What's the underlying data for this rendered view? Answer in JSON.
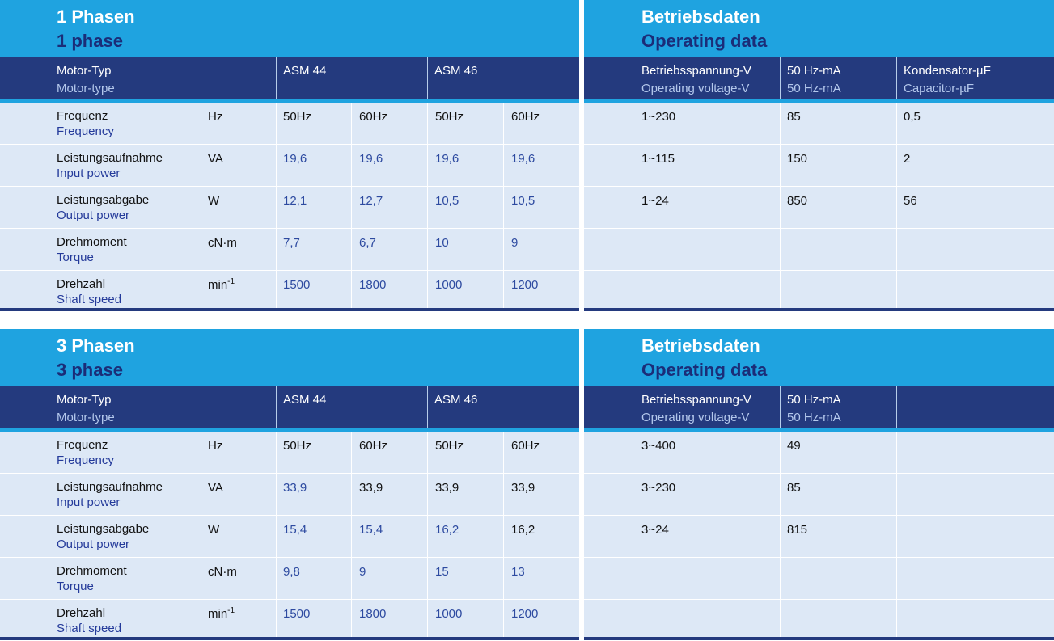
{
  "phase1": {
    "title_de": "1 Phasen",
    "title_en": "1 phase",
    "motor_type_de": "Motor-Typ",
    "motor_type_en": "Motor-type",
    "model_a": "ASM 44",
    "model_b": "ASM 46",
    "rows": [
      {
        "de": "Frequenz",
        "en": "Frequency",
        "unit": "Hz",
        "v": [
          "50Hz",
          "60Hz",
          "50Hz",
          "60Hz"
        ]
      },
      {
        "de": "Leistungsaufnahme",
        "en": "Input power",
        "unit": "VA",
        "v": [
          "19,6",
          "19,6",
          "19,6",
          "19,6"
        ]
      },
      {
        "de": "Leistungsabgabe",
        "en": "Output power",
        "unit": "W",
        "v": [
          "12,1",
          "12,7",
          "10,5",
          "10,5"
        ]
      },
      {
        "de": "Drehmoment",
        "en": "Torque",
        "unit": "cN·m",
        "v": [
          "7,7",
          "6,7",
          "10",
          "9"
        ]
      },
      {
        "de": "Drehzahl",
        "en": "Shaft speed",
        "unit": "min",
        "unit_sup": "-1",
        "v": [
          "1500",
          "1800",
          "1000",
          "1200"
        ]
      }
    ]
  },
  "op1": {
    "title_de": "Betriebsdaten",
    "title_en": "Operating data",
    "headers": [
      {
        "de": "Betriebsspannung-V",
        "en": "Operating voltage-V"
      },
      {
        "de": "50 Hz-mA",
        "en": "50 Hz-mA"
      },
      {
        "de": "Kondensator-µF",
        "en": "Capacitor-µF"
      }
    ],
    "rows": [
      [
        "1~230",
        "85",
        "0,5"
      ],
      [
        "1~115",
        "150",
        "2"
      ],
      [
        "1~24",
        "850",
        "56"
      ]
    ]
  },
  "phase3": {
    "title_de": "3 Phasen",
    "title_en": "3 phase",
    "motor_type_de": "Motor-Typ",
    "motor_type_en": "Motor-type",
    "model_a": "ASM 44",
    "model_b": "ASM 46",
    "rows": [
      {
        "de": "Frequenz",
        "en": "Frequency",
        "unit": "Hz",
        "v": [
          "50Hz",
          "60Hz",
          "50Hz",
          "60Hz"
        ]
      },
      {
        "de": "Leistungsaufnahme",
        "en": "Input power",
        "unit": "VA",
        "v": [
          "33,9",
          "33,9",
          "33,9",
          "33,9"
        ]
      },
      {
        "de": "Leistungsabgabe",
        "en": "Output power",
        "unit": "W",
        "v": [
          "15,4",
          "15,4",
          "16,2",
          "16,2"
        ]
      },
      {
        "de": "Drehmoment",
        "en": "Torque",
        "unit": "cN·m",
        "v": [
          "9,8",
          "9",
          "15",
          "13"
        ]
      },
      {
        "de": "Drehzahl",
        "en": "Shaft speed",
        "unit": "min",
        "unit_sup": "-1",
        "v": [
          "1500",
          "1800",
          "1000",
          "1200"
        ]
      }
    ]
  },
  "op3": {
    "title_de": "Betriebsdaten",
    "title_en": "Operating data",
    "headers": [
      {
        "de": "Betriebsspannung-V",
        "en": "Operating voltage-V"
      },
      {
        "de": "50 Hz-mA",
        "en": "50 Hz-mA"
      }
    ],
    "rows": [
      [
        "3~400",
        "49"
      ],
      [
        "3~230",
        "85"
      ],
      [
        "3~24",
        "815"
      ]
    ]
  },
  "colors": {
    "title_bg": "#1fa3e0",
    "header_bg": "#243a7e",
    "body_bg": "#dde8f6",
    "english_text": "#1b2d78"
  }
}
